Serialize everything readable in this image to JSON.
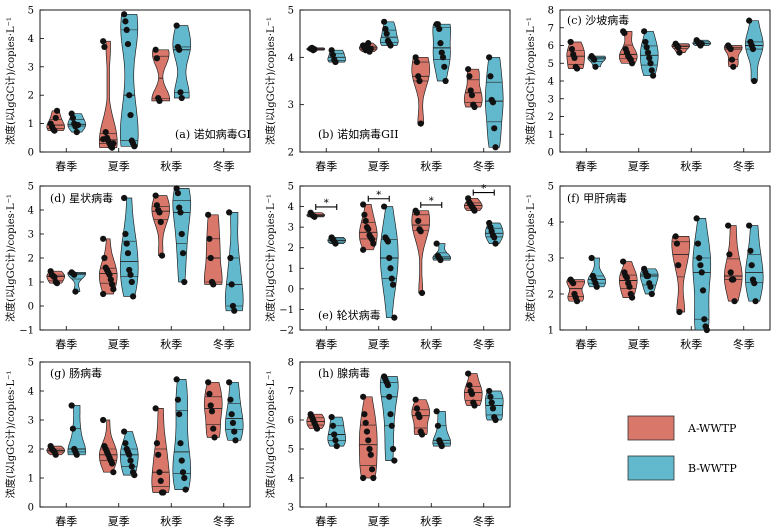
{
  "colors": {
    "A": "#d9776b",
    "B": "#62b9ce"
  },
  "legend": {
    "A": "A-WWTP",
    "B": "B-WWTP"
  },
  "chart_data": [
    {
      "type": "violin",
      "title": "(a) 诺如病毒GI",
      "ylabel": "浓度(以lgGC计)/copies·L⁻¹",
      "ylim": [
        0,
        5
      ],
      "yticks": [
        0,
        1,
        2,
        3,
        4,
        5
      ],
      "categories": [
        "春季",
        "夏季",
        "秋季",
        "冬季"
      ],
      "series": [
        {
          "name": "A-WWTP",
          "groups": [
            [
              1.0,
              0.9,
              0.8,
              0.75,
              1.2,
              1.45
            ],
            [
              3.9,
              3.7,
              0.7,
              0.5,
              0.4,
              0.3,
              0.2,
              0.15,
              0.3,
              0.45
            ],
            [
              3.6,
              3.3,
              1.9,
              1.8
            ],
            null
          ]
        },
        {
          "name": "B-WWTP",
          "groups": [
            [
              1.35,
              1.2,
              1.0,
              0.9,
              0.7,
              0.95
            ],
            [
              4.85,
              4.6,
              4.3,
              3.8,
              2.0,
              1.3,
              0.4,
              0.3,
              0.2
            ],
            [
              4.45,
              3.7,
              3.6,
              2.1,
              1.9
            ],
            null
          ]
        }
      ]
    },
    {
      "type": "violin",
      "title": "(b) 诺如病毒GII",
      "ylabel": "浓度(以lgGC计)/copies·L⁻¹",
      "ylim": [
        2,
        5
      ],
      "yticks": [
        2,
        3,
        4,
        5
      ],
      "categories": [
        "春季",
        "夏季",
        "秋季",
        "冬季"
      ],
      "series": [
        {
          "name": "A-WWTP",
          "groups": [
            [
              4.18,
              4.2,
              4.15,
              4.17
            ],
            [
              4.25,
              4.2,
              4.15,
              4.22,
              4.3,
              4.12,
              4.18
            ],
            [
              4.0,
              3.9,
              3.6,
              3.5,
              2.6
            ],
            [
              3.75,
              3.6,
              3.3,
              3.2,
              3.0,
              2.95
            ]
          ]
        },
        {
          "name": "B-WWTP",
          "groups": [
            [
              4.15,
              4.05,
              3.95,
              3.9
            ],
            [
              4.75,
              4.6,
              4.5,
              4.35,
              4.3,
              4.25
            ],
            [
              4.7,
              4.7,
              4.6,
              4.3,
              4.1,
              4.0,
              3.8,
              3.5
            ],
            [
              4.0,
              3.6,
              3.1,
              3.05,
              2.5,
              2.1
            ]
          ]
        }
      ]
    },
    {
      "type": "violin",
      "title": "(c) 沙坡病毒",
      "ylabel": "浓度(以lgGC计)/copies·L⁻¹",
      "ylim": [
        0,
        8
      ],
      "yticks": [
        0,
        1,
        2,
        3,
        4,
        5,
        6,
        7,
        8
      ],
      "categories": [
        "春季",
        "夏季",
        "秋季",
        "冬季"
      ],
      "series": [
        {
          "name": "A-WWTP",
          "groups": [
            [
              6.2,
              5.8,
              5.5,
              5.3,
              4.8,
              4.7
            ],
            [
              6.8,
              6.7,
              5.8,
              5.6,
              5.4,
              5.3,
              5.2,
              5.0
            ],
            [
              6.1,
              6.0,
              5.9,
              5.6
            ],
            [
              6.0,
              5.9,
              5.8,
              5.2,
              4.8
            ]
          ]
        },
        {
          "name": "B-WWTP",
          "groups": [
            [
              5.4,
              5.3,
              5.2,
              4.8
            ],
            [
              6.8,
              6.2,
              5.9,
              5.6,
              5.3,
              5.0,
              4.6,
              4.3
            ],
            [
              6.3,
              6.2,
              6.1,
              6.0,
              6.1
            ],
            [
              7.4,
              6.2,
              6.0,
              5.8,
              4.0
            ]
          ]
        }
      ]
    },
    {
      "type": "violin",
      "title": "(d) 星状病毒",
      "ylabel": "浓度(以lgGC计)/copies·L⁻¹",
      "ylim": [
        -1,
        5
      ],
      "yticks": [
        -1,
        0,
        1,
        2,
        3,
        4,
        5
      ],
      "categories": [
        "春季",
        "夏季",
        "秋季",
        "冬季"
      ],
      "series": [
        {
          "name": "A-WWTP",
          "groups": [
            [
              1.45,
              1.3,
              1.25,
              1.2,
              1.0,
              0.95
            ],
            [
              2.8,
              2.0,
              1.6,
              1.5,
              1.4,
              1.3,
              1.1,
              0.9,
              0.7,
              0.5
            ],
            [
              4.6,
              4.2,
              4.0,
              3.9,
              3.5,
              2.1
            ],
            [
              3.8,
              2.8,
              2.0,
              1.0,
              0.9
            ]
          ]
        },
        {
          "name": "B-WWTP",
          "groups": [
            [
              1.4,
              1.35,
              1.3,
              0.6
            ],
            [
              4.5,
              3.0,
              2.6,
              2.2,
              1.5,
              1.3,
              1.0,
              0.4
            ],
            [
              4.9,
              4.7,
              4.1,
              3.9,
              3.0,
              2.2,
              1.0
            ],
            [
              3.9,
              2.0,
              0.9,
              0.0,
              -0.2
            ]
          ]
        }
      ]
    },
    {
      "type": "violin",
      "title": "(e) 轮状病毒",
      "ylabel": "浓度(以lgGC计)/copies·L⁻¹",
      "ylim": [
        -2,
        5
      ],
      "yticks": [
        -2,
        -1,
        0,
        1,
        2,
        3,
        4,
        5
      ],
      "categories": [
        "春季",
        "夏季",
        "秋季",
        "冬季"
      ],
      "significance": [
        "*",
        "*",
        "*",
        "*"
      ],
      "series": [
        {
          "name": "A-WWTP",
          "groups": [
            [
              3.7,
              3.6,
              3.55,
              3.5
            ],
            [
              4.1,
              3.6,
              3.3,
              3.0,
              2.9,
              2.6,
              2.5,
              2.4,
              2.2,
              1.9
            ],
            [
              3.8,
              3.7,
              3.3,
              2.9,
              2.8,
              -0.2
            ],
            [
              4.4,
              4.2,
              4.1,
              4.0,
              3.9,
              3.8
            ]
          ]
        },
        {
          "name": "B-WWTP",
          "groups": [
            [
              2.5,
              2.4,
              2.3,
              2.2
            ],
            [
              4.0,
              2.5,
              2.4,
              2.3,
              1.5,
              1.0,
              0.5,
              0.2,
              -1.4
            ],
            [
              2.2,
              1.6,
              1.5,
              1.4
            ],
            [
              3.2,
              3.0,
              2.8,
              2.6,
              2.5,
              2.2
            ]
          ]
        }
      ]
    },
    {
      "type": "violin",
      "title": "(f) 甲肝病毒",
      "ylabel": "浓度(以lgGC计)/copies·L⁻¹",
      "ylim": [
        1,
        5
      ],
      "yticks": [
        1,
        2,
        3,
        4,
        5
      ],
      "categories": [
        "春季",
        "夏季",
        "秋季",
        "冬季"
      ],
      "series": [
        {
          "name": "A-WWTP",
          "groups": [
            [
              2.4,
              2.35,
              2.3,
              2.0,
              1.9,
              1.8
            ],
            [
              2.9,
              2.6,
              2.5,
              2.45,
              2.3,
              2.2,
              2.0,
              1.9
            ],
            [
              3.6,
              3.4,
              2.8,
              1.5
            ],
            [
              3.9,
              3.1,
              2.6,
              2.4,
              2.4,
              1.8
            ]
          ]
        },
        {
          "name": "B-WWTP",
          "groups": [
            [
              3.0,
              2.5,
              2.4,
              2.3,
              2.2
            ],
            [
              2.7,
              2.6,
              2.5,
              2.5,
              2.3,
              2.2,
              2.0
            ],
            [
              4.1,
              3.4,
              3.0,
              2.8,
              2.6,
              2.1,
              1.3,
              1.1,
              1.0
            ],
            [
              3.9,
              3.2,
              2.8,
              2.4,
              2.3,
              1.8
            ]
          ]
        }
      ]
    },
    {
      "type": "violin",
      "title": "(g) 肠病毒",
      "ylabel": "浓度(以lgGC计)/copies·L⁻¹",
      "ylim": [
        0,
        5
      ],
      "yticks": [
        0,
        1,
        2,
        3,
        4,
        5
      ],
      "categories": [
        "春季",
        "夏季",
        "秋季",
        "冬季"
      ],
      "series": [
        {
          "name": "A-WWTP",
          "groups": [
            [
              2.1,
              2.0,
              1.95,
              1.9,
              1.8
            ],
            [
              3.0,
              2.1,
              2.0,
              1.9,
              1.8,
              1.7,
              1.6,
              1.5,
              1.2
            ],
            [
              3.4,
              2.2,
              1.8,
              1.2,
              0.9,
              0.5,
              0.5
            ],
            [
              4.3,
              3.9,
              3.5,
              3.3,
              2.7,
              2.4
            ]
          ]
        },
        {
          "name": "B-WWTP",
          "groups": [
            [
              3.5,
              2.7,
              2.0,
              1.9,
              1.8
            ],
            [
              2.6,
              2.2,
              2.0,
              1.9,
              1.8,
              1.6,
              1.4,
              1.2,
              1.1
            ],
            [
              4.4,
              3.7,
              3.2,
              2.2,
              1.6,
              1.2,
              1.0,
              0.6
            ],
            [
              4.3,
              3.7,
              3.2,
              2.9,
              2.6,
              2.3
            ]
          ]
        }
      ]
    },
    {
      "type": "violin",
      "title": "(h) 腺病毒",
      "ylabel": "浓度(以lgGC计)/copies·L⁻¹",
      "ylim": [
        3,
        8
      ],
      "yticks": [
        3,
        4,
        5,
        6,
        7,
        8
      ],
      "categories": [
        "春季",
        "夏季",
        "秋季",
        "冬季"
      ],
      "series": [
        {
          "name": "A-WWTP",
          "groups": [
            [
              6.2,
              6.1,
              6.0,
              5.9,
              5.8,
              5.7
            ],
            [
              6.8,
              6.2,
              5.9,
              5.6,
              5.3,
              5.0,
              4.8,
              4.3,
              4.0,
              4.0
            ],
            [
              6.7,
              6.4,
              6.2,
              6.1,
              5.6,
              5.5
            ],
            [
              7.6,
              7.2,
              7.0,
              6.9,
              6.6,
              6.5
            ]
          ]
        },
        {
          "name": "B-WWTP",
          "groups": [
            [
              6.1,
              5.8,
              5.5,
              5.3,
              5.1
            ],
            [
              7.5,
              7.4,
              7.3,
              7.2,
              6.8,
              6.2,
              5.8,
              5.0,
              4.6
            ],
            [
              6.3,
              5.8,
              5.3,
              5.2,
              5.1
            ],
            [
              7.0,
              6.8,
              6.6,
              6.4,
              6.1,
              6.0
            ]
          ]
        }
      ]
    }
  ]
}
